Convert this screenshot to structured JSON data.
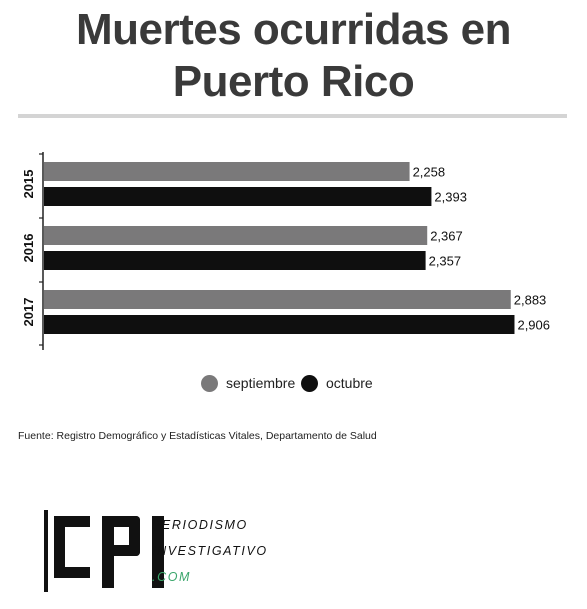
{
  "title_line1": "Muertes ocurridas en",
  "title_line2": "Puerto Rico",
  "chart_data": {
    "type": "bar",
    "orientation": "horizontal",
    "categories": [
      "2015",
      "2016",
      "2017"
    ],
    "series": [
      {
        "name": "septiembre",
        "values": [
          2258,
          2367,
          2883
        ],
        "value_labels": [
          "2,258",
          "2,367",
          "2,883"
        ],
        "color": "#7a797a"
      },
      {
        "name": "octubre",
        "values": [
          2393,
          2357,
          2906
        ],
        "value_labels": [
          "2,393",
          "2,357",
          "2,906"
        ],
        "color": "#0f0f0f"
      }
    ],
    "xlim": [
      0,
      3100
    ],
    "grid": false,
    "legend": "bottom-center"
  },
  "source": "Fuente: Registro Demográfico y Estadísticas Vitales, Departamento de Salud",
  "logo": {
    "mark": "CPI",
    "line1": "PERIODISMO",
    "line2": "INVESTIGATIVO",
    "line3": ".COM",
    "accent_color": "#3aa66b"
  }
}
